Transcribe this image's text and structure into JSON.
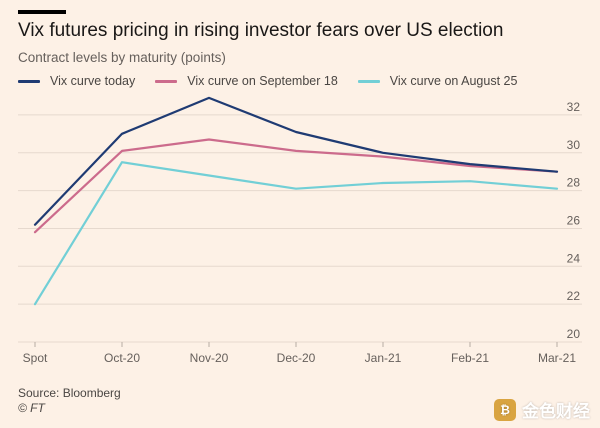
{
  "header": {
    "title": "Vix futures pricing in rising investor fears over US election",
    "subtitle": "Contract levels by maturity (points)"
  },
  "footer": {
    "source": "Source: Bloomberg",
    "credit": "© FT"
  },
  "watermark": {
    "text": "金色财经"
  },
  "colors": {
    "background": "#fdf1e6",
    "grid": "#e6d9ce",
    "axis_text": "#66605c"
  },
  "chart_data": {
    "type": "line",
    "title": "Vix futures pricing in rising investor fears over US election",
    "subtitle": "Contract levels by maturity (points)",
    "xlabel": "",
    "ylabel": "",
    "ylim": [
      20,
      33
    ],
    "yticks": [
      20,
      22,
      24,
      26,
      28,
      30,
      32
    ],
    "grid": true,
    "legend_position": "top-left",
    "categories": [
      "Spot",
      "Oct-20",
      "Nov-20",
      "Dec-20",
      "Jan-21",
      "Feb-21",
      "Mar-21"
    ],
    "series": [
      {
        "name": "Vix curve today",
        "color": "#1f3b73",
        "values": [
          26.2,
          31.0,
          32.9,
          31.1,
          30.0,
          29.4,
          29.0
        ]
      },
      {
        "name": "Vix curve on September 18",
        "color": "#cc6b8c",
        "values": [
          25.8,
          30.1,
          30.7,
          30.1,
          29.8,
          29.3,
          29.0
        ]
      },
      {
        "name": "Vix curve on August 25",
        "color": "#72cfd6",
        "values": [
          22.0,
          29.5,
          28.8,
          28.1,
          28.4,
          28.5,
          28.1
        ]
      }
    ]
  }
}
